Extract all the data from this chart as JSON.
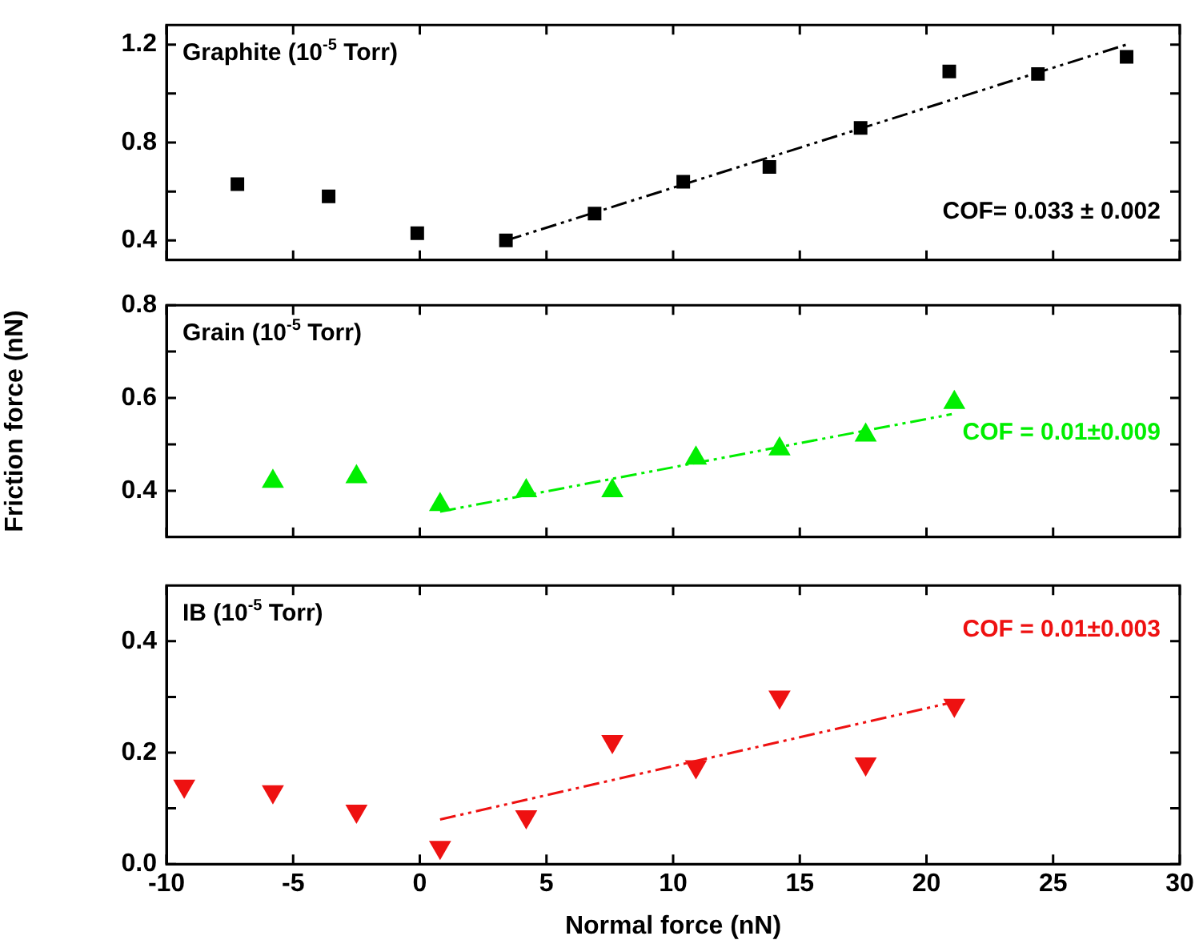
{
  "chart_data": [
    {
      "type": "scatter",
      "title": "Graphite (10$^{-5}$ Torr)",
      "xlim": [
        -10,
        30
      ],
      "xticks": [
        -10,
        -5,
        0,
        5,
        10,
        15,
        20,
        25,
        30
      ],
      "ylim": [
        0.32,
        1.28
      ],
      "yticks": [
        0.4,
        {
          "value": 0.6,
          "label": null
        },
        0.8,
        {
          "value": 1.0,
          "label": null
        },
        1.2
      ],
      "tick_labels": "y",
      "grid": false,
      "legend": false,
      "marker": "square",
      "annotations": [
        "COF= 0.033 ± 0.002"
      ],
      "series": [
        {
          "color": "#000000",
          "x": [
            -7.2,
            -3.6,
            -0.1,
            3.4,
            6.9,
            10.4,
            13.8,
            17.4,
            20.9,
            24.4,
            27.9
          ],
          "values": [
            0.63,
            0.58,
            0.43,
            0.4,
            0.51,
            0.64,
            0.7,
            0.86,
            1.09,
            1.08,
            1.15
          ]
        },
        {
          "type": "line",
          "color": "#000000",
          "line_style": "dashed",
          "marker": "none",
          "x": [
            3.4,
            27.9
          ],
          "values": [
            0.4,
            1.2
          ]
        }
      ]
    },
    {
      "type": "scatter",
      "title": "Grain (10$^{-5}$ Torr)",
      "ylabel": "Friction force (nN)",
      "xlim": [
        -10,
        30
      ],
      "xticks": [
        -10,
        -5,
        0,
        5,
        10,
        15,
        20,
        25,
        30
      ],
      "ylim": [
        0.3,
        0.8
      ],
      "yticks": [
        0.4,
        {
          "value": 0.5,
          "label": null
        },
        0.6,
        {
          "value": 0.7,
          "label": null
        },
        0.8
      ],
      "tick_labels": "y",
      "grid": false,
      "legend": false,
      "marker": "triangle",
      "annotations": [
        "COF = 0.01±0.009"
      ],
      "series": [
        {
          "color": "#00ee00",
          "x": [
            -5.8,
            -2.5,
            0.8,
            4.2,
            7.6,
            10.9,
            14.2,
            17.6,
            21.1
          ],
          "values": [
            0.42,
            0.43,
            0.37,
            0.4,
            0.4,
            0.47,
            0.49,
            0.52,
            0.59
          ]
        },
        {
          "type": "line",
          "color": "#00ee00",
          "line_style": "dashed",
          "marker": "none",
          "x": [
            0.8,
            21
          ],
          "values": [
            0.355,
            0.565
          ]
        }
      ]
    },
    {
      "type": "scatter",
      "title": "IB (10$^{-5}$ Torr)",
      "xlabel": "Normal force (nN)",
      "xlim": [
        -10,
        30
      ],
      "xticks": [
        -10,
        -5,
        0,
        5,
        10,
        15,
        20,
        25,
        30
      ],
      "ylim": [
        0,
        0.5
      ],
      "yticks": [
        {
          "value": 0,
          "label": "0.0"
        },
        {
          "value": 0.1,
          "label": null
        },
        0.2,
        {
          "value": 0.3,
          "label": null
        },
        0.4
      ],
      "grid": false,
      "legend": false,
      "marker": "triangle",
      "annotations": [
        "COF = 0.01±0.003"
      ],
      "series": [
        {
          "color": "#ee1111",
          "x": [
            -9.3,
            -5.8,
            -2.5,
            0.8,
            4.2,
            7.6,
            10.9,
            14.2,
            17.6,
            21.1
          ],
          "values": [
            0.14,
            0.13,
            0.095,
            0.03,
            0.085,
            0.22,
            0.175,
            0.3,
            0.18,
            0.285
          ]
        },
        {
          "type": "line",
          "color": "#ee1111",
          "line_style": "dashed",
          "marker": "none",
          "x": [
            0.8,
            21
          ],
          "values": [
            0.08,
            0.29
          ]
        }
      ]
    }
  ]
}
